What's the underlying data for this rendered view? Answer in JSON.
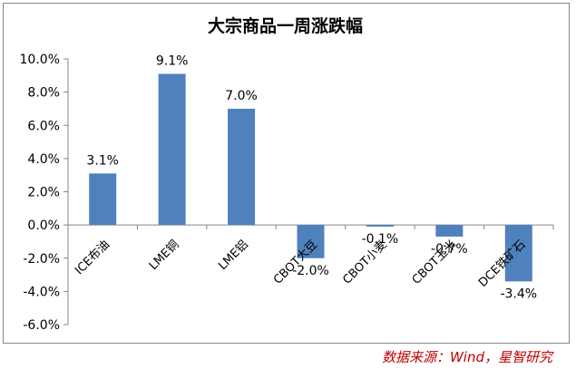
{
  "chart_data": {
    "type": "bar",
    "title": "大宗商品一周涨跌幅",
    "categories": [
      "ICE布油",
      "LME铜",
      "LME铝",
      "CBOT大豆",
      "CBOT小麦",
      "CBOT玉米",
      "DCE铁矿石"
    ],
    "values": [
      3.1,
      9.1,
      7.0,
      -2.0,
      -0.1,
      -0.7,
      -3.4
    ],
    "data_labels": [
      "3.1%",
      "9.1%",
      "7.0%",
      "-2.0%",
      "-0.1%",
      "-0.7%",
      "-3.4%"
    ],
    "y_ticks": [
      10,
      8,
      6,
      4,
      2,
      0,
      -2,
      -4,
      -6
    ],
    "y_tick_labels": [
      "10.0%",
      "8.0%",
      "6.0%",
      "4.0%",
      "2.0%",
      "0.0%",
      "-2.0%",
      "-4.0%",
      "-6.0%"
    ],
    "ylim": [
      -6,
      10
    ],
    "grid": false,
    "legend": "none",
    "bar_color": "#4f81bd"
  },
  "source_note": "数据来源：Wind，星智研究"
}
